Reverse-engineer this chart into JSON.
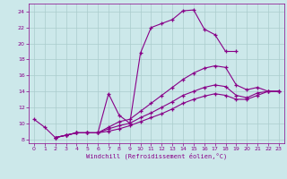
{
  "xlabel": "Windchill (Refroidissement éolien,°C)",
  "bg_color": "#cce8ea",
  "grid_color": "#aacccc",
  "line_color": "#880088",
  "spine_color": "#880088",
  "xlim": [
    -0.5,
    23.5
  ],
  "ylim": [
    7.5,
    25.0
  ],
  "xticks": [
    0,
    1,
    2,
    3,
    4,
    5,
    6,
    7,
    8,
    9,
    10,
    11,
    12,
    13,
    14,
    15,
    16,
    17,
    18,
    19,
    20,
    21,
    22,
    23
  ],
  "yticks": [
    8,
    10,
    12,
    14,
    16,
    18,
    20,
    22,
    24
  ],
  "lines": [
    {
      "x": [
        0,
        1,
        2,
        3,
        4,
        5,
        6,
        7,
        8,
        9,
        10,
        11,
        12,
        13,
        14,
        15,
        16,
        17,
        18,
        19
      ],
      "y": [
        10.5,
        9.5,
        8.2,
        8.5,
        8.8,
        8.8,
        8.8,
        13.7,
        11.0,
        10.0,
        18.8,
        22.0,
        22.5,
        23.0,
        24.1,
        24.2,
        21.8,
        21.1,
        19.0,
        19.0
      ]
    },
    {
      "x": [
        2,
        3,
        4,
        5,
        6,
        7,
        8,
        9,
        10,
        11,
        12,
        13,
        14,
        15,
        16,
        17,
        18,
        19,
        20,
        21,
        22,
        23
      ],
      "y": [
        8.2,
        8.5,
        8.8,
        8.8,
        8.8,
        9.5,
        10.2,
        10.5,
        11.5,
        12.5,
        13.5,
        14.5,
        15.5,
        16.3,
        16.9,
        17.2,
        17.0,
        14.8,
        14.2,
        14.5,
        14.0,
        14.0
      ]
    },
    {
      "x": [
        2,
        3,
        4,
        5,
        6,
        7,
        8,
        9,
        10,
        11,
        12,
        13,
        14,
        15,
        16,
        17,
        18,
        19,
        20,
        21,
        22,
        23
      ],
      "y": [
        8.2,
        8.5,
        8.8,
        8.8,
        8.8,
        9.3,
        9.7,
        10.0,
        10.7,
        11.3,
        12.0,
        12.7,
        13.5,
        14.0,
        14.5,
        14.8,
        14.6,
        13.5,
        13.2,
        13.8,
        14.0,
        14.0
      ]
    },
    {
      "x": [
        2,
        3,
        4,
        5,
        6,
        7,
        8,
        9,
        10,
        11,
        12,
        13,
        14,
        15,
        16,
        17,
        18,
        19,
        20,
        21,
        22,
        23
      ],
      "y": [
        8.2,
        8.5,
        8.8,
        8.8,
        8.8,
        9.0,
        9.3,
        9.7,
        10.2,
        10.7,
        11.2,
        11.8,
        12.5,
        13.0,
        13.4,
        13.7,
        13.5,
        13.0,
        13.0,
        13.5,
        14.0,
        14.0
      ]
    }
  ]
}
